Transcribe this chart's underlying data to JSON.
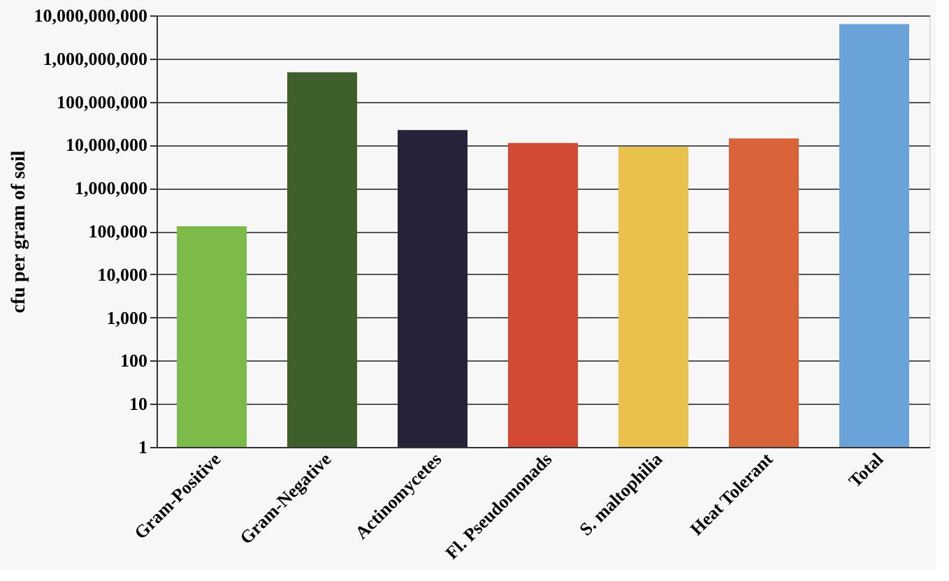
{
  "chart_data": {
    "type": "bar",
    "ylabel": "cfu per gram of soil",
    "categories": [
      "Gram-Positive",
      "Gram-Negative",
      "Actinomycetes",
      "Fl. Pseudomonads",
      "S. maltophilia",
      "Heat Tolerant",
      "Total"
    ],
    "values": [
      130000,
      480000000,
      22000000,
      11000000,
      9000000,
      14000000,
      6300000000
    ],
    "colors": [
      "#7cba4a",
      "#3f5f2a",
      "#27223a",
      "#d34a34",
      "#e8c24a",
      "#d9643a",
      "#6aa3d9"
    ],
    "log": "y",
    "ylim": [
      1,
      10000000000
    ],
    "yticks": [
      {
        "value": 1,
        "label": "1"
      },
      {
        "value": 10,
        "label": "10"
      },
      {
        "value": 100,
        "label": "100"
      },
      {
        "value": 1000,
        "label": "1,000"
      },
      {
        "value": 10000,
        "label": "10,000"
      },
      {
        "value": 100000,
        "label": "100,000"
      },
      {
        "value": 1000000,
        "label": "1,000,000"
      },
      {
        "value": 10000000,
        "label": "10,000,000"
      },
      {
        "value": 100000000,
        "label": "100,000,000"
      },
      {
        "value": 1000000000,
        "label": "1,000,000,000"
      },
      {
        "value": 10000000000,
        "label": "10,000,000,000"
      }
    ],
    "grid": "y"
  }
}
